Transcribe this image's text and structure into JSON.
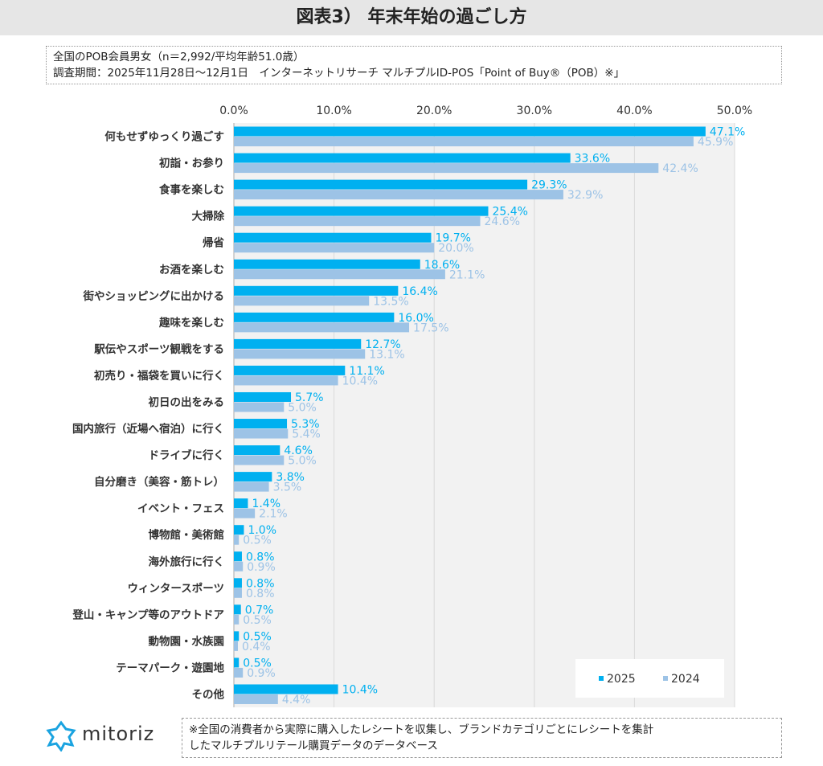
{
  "title": "図表3） 年末年始の過ごし方",
  "info": {
    "line1": "全国のPOB会員男女（n＝2,992/平均年齢51.0歳）",
    "line2": "調査期間：2025年11月28日～12月1日　インターネットリサーチ マルチプルID-POS「Point of Buy®（POB）※」"
  },
  "note": {
    "line1": "※全国の消費者から実際に購入したレシートを収集し、ブランドカテゴリごとにレシートを集計",
    "line2": "したマルチプルリテール購買データのデータベース"
  },
  "logo": {
    "text": "mitoriz"
  },
  "colors": {
    "s2025": "#00b0f0",
    "s2024": "#9dc3e6",
    "plot_bg": "#f2f2f2"
  },
  "chart_data": {
    "type": "bar",
    "orientation": "horizontal",
    "grid": true,
    "legend": "bottom-right",
    "xlim": [
      0,
      50
    ],
    "ticks": [
      "0.0%",
      "10.0%",
      "20.0%",
      "30.0%",
      "40.0%",
      "50.0%"
    ],
    "categories": [
      "何もせずゆっくり過ごす",
      "初詣・お参り",
      "食事を楽しむ",
      "大掃除",
      "帰省",
      "お酒を楽しむ",
      "街やショッピングに出かける",
      "趣味を楽しむ",
      "駅伝やスポーツ観戦をする",
      "初売り・福袋を買いに行く",
      "初日の出をみる",
      "国内旅行（近場へ宿泊）に行く",
      "ドライブに行く",
      "自分磨き（美容・筋トレ）",
      "イベント・フェス",
      "博物館・美術館",
      "海外旅行に行く",
      "ウィンタースポーツ",
      "登山・キャンプ等のアウトドア",
      "動物園・水族園",
      "テーマパーク・遊園地",
      "その他"
    ],
    "series": [
      {
        "name": "2025",
        "values": [
          47.1,
          33.6,
          29.3,
          25.4,
          19.7,
          18.6,
          16.4,
          16.0,
          12.7,
          11.1,
          5.7,
          5.3,
          4.6,
          3.8,
          1.4,
          1.0,
          0.8,
          0.8,
          0.7,
          0.5,
          0.5,
          10.4
        ]
      },
      {
        "name": "2024",
        "values": [
          45.9,
          42.4,
          32.9,
          24.6,
          20.0,
          21.1,
          13.5,
          17.5,
          13.1,
          10.4,
          5.0,
          5.4,
          5.0,
          3.5,
          2.1,
          0.5,
          0.9,
          0.8,
          0.5,
          0.4,
          0.9,
          4.4
        ]
      }
    ]
  }
}
